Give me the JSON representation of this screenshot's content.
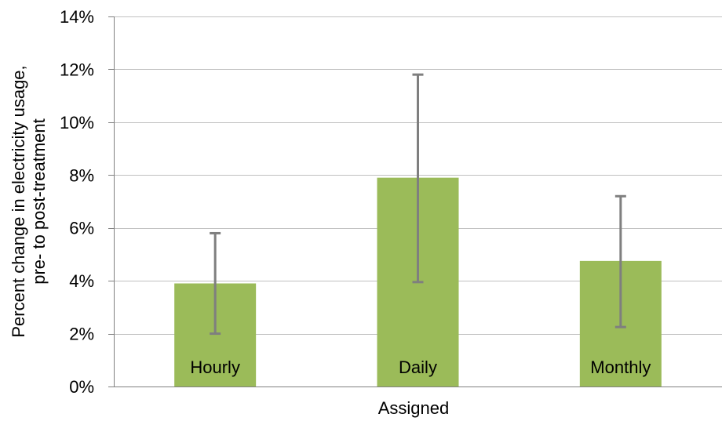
{
  "chart_data": {
    "type": "bar",
    "title": "",
    "xlabel": "Assigned",
    "ylabel_lines": [
      "Percent change in electricity usage,",
      "pre- to post-treatment"
    ],
    "categories": [
      "Hourly",
      "Daily",
      "Monthly"
    ],
    "values": [
      3.9,
      7.9,
      4.75
    ],
    "error_low": [
      2.0,
      3.95,
      2.25
    ],
    "error_high": [
      5.8,
      11.8,
      7.2
    ],
    "ylim": [
      0,
      14
    ],
    "yticks": [
      0,
      2,
      4,
      6,
      8,
      10,
      12,
      14
    ],
    "ytick_labels": [
      "0%",
      "2%",
      "4%",
      "6%",
      "8%",
      "10%",
      "12%",
      "14%"
    ],
    "grid": true,
    "legend": "none",
    "colors": {
      "bar": "#9bbb59",
      "error": "#7f7f7f",
      "grid": "#c0c0c0",
      "axis": "#808080"
    }
  }
}
